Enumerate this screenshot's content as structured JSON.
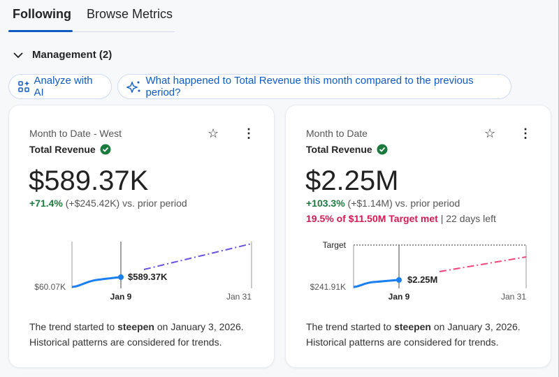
{
  "tabs": [
    {
      "label": "Following",
      "active": true
    },
    {
      "label": "Browse Metrics"
    }
  ],
  "section": {
    "label": "Management (2)"
  },
  "actions": {
    "analyze": "Analyze with AI",
    "question": "What happened to Total Revenue this month compared to the previous period?"
  },
  "colors": {
    "accent": "#0f5bc4",
    "positive": "#1b7a3e",
    "target": "#d21a54",
    "projection_left": "#6a4fe0",
    "projection_right": "#f0457a"
  },
  "cards": [
    {
      "subtitle": "Month to Date - West",
      "title": "Total Revenue",
      "value": "$589.37K",
      "delta_pct": "+71.4%",
      "delta_rest": " (+$245.42K) vs. prior period",
      "chart": {
        "y_min_label": "$60.07K",
        "current_label": "$589.37K",
        "x_current": "Jan 9",
        "x_end": "Jan 31"
      },
      "foot_pre": "The trend started to ",
      "foot_bold": "steepen",
      "foot_post": " on January 3, 2026.",
      "foot_line2": "Historical patterns are considered for trends."
    },
    {
      "subtitle": "Month to Date",
      "title": "Total Revenue",
      "value": "$2.25M",
      "delta_pct": "+103.3%",
      "delta_rest": " (+$1.14M) vs. prior period",
      "target_met": "19.5% of $11.50M Target met",
      "target_rest": " | 22 days left",
      "chart": {
        "target_label": "Target",
        "y_min_label": "$241.91K",
        "current_label": "$2.25M",
        "x_current": "Jan 9",
        "x_end": "Jan 31"
      },
      "foot_pre": "The trend started to ",
      "foot_bold": "steepen",
      "foot_post": " on January 3, 2026.",
      "foot_line2": "Historical patterns are considered for trends."
    }
  ]
}
